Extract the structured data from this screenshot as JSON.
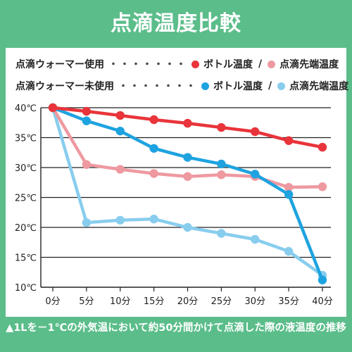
{
  "title": "点滴温度比較",
  "caption": "▲1Lを－1℃の外気温において約50分間かけて点滴した際の液温度の推移",
  "legend": {
    "row1_label": "点滴ウォーマー使用",
    "row2_label": "点滴ウォーマー未使用",
    "dots": "・・・・・・・",
    "bottle": "ボトル温度",
    "tip": "点滴先端温度",
    "slash": "/"
  },
  "colors": {
    "frame": "#5bbd8a",
    "warmer_bottle": "#e8343a",
    "warmer_tip": "#ee99a0",
    "nowarmer_bottle": "#1ea3e0",
    "nowarmer_tip": "#88cdee"
  },
  "chart_data": {
    "type": "line",
    "x": [
      "0分",
      "5分",
      "10分",
      "15分",
      "20分",
      "25分",
      "30分",
      "35分",
      "40分"
    ],
    "y_ticks": [
      "10℃",
      "15℃",
      "20℃",
      "25℃",
      "30℃",
      "35℃",
      "40℃"
    ],
    "ylim": [
      10,
      40
    ],
    "grid": true,
    "series": [
      {
        "name": "点滴ウォーマー使用 ボトル温度",
        "color": "#e8343a",
        "values": [
          40,
          39.4,
          38.7,
          38.0,
          37.4,
          36.7,
          36.0,
          34.5,
          33.4
        ]
      },
      {
        "name": "点滴ウォーマー使用 点滴先端温度",
        "color": "#ee99a0",
        "values": [
          40,
          30.5,
          29.7,
          29.0,
          28.5,
          28.8,
          28.5,
          26.7,
          26.8
        ]
      },
      {
        "name": "点滴ウォーマー未使用 ボトル温度",
        "color": "#1ea3e0",
        "values": [
          40,
          37.8,
          36.1,
          33.2,
          31.7,
          30.6,
          28.9,
          25.5,
          11.2
        ]
      },
      {
        "name": "点滴ウォーマー未使用 点滴先端温度",
        "color": "#88cdee",
        "values": [
          40,
          20.8,
          21.2,
          21.4,
          20.0,
          19.0,
          18.0,
          16.0,
          12.0
        ]
      }
    ]
  }
}
